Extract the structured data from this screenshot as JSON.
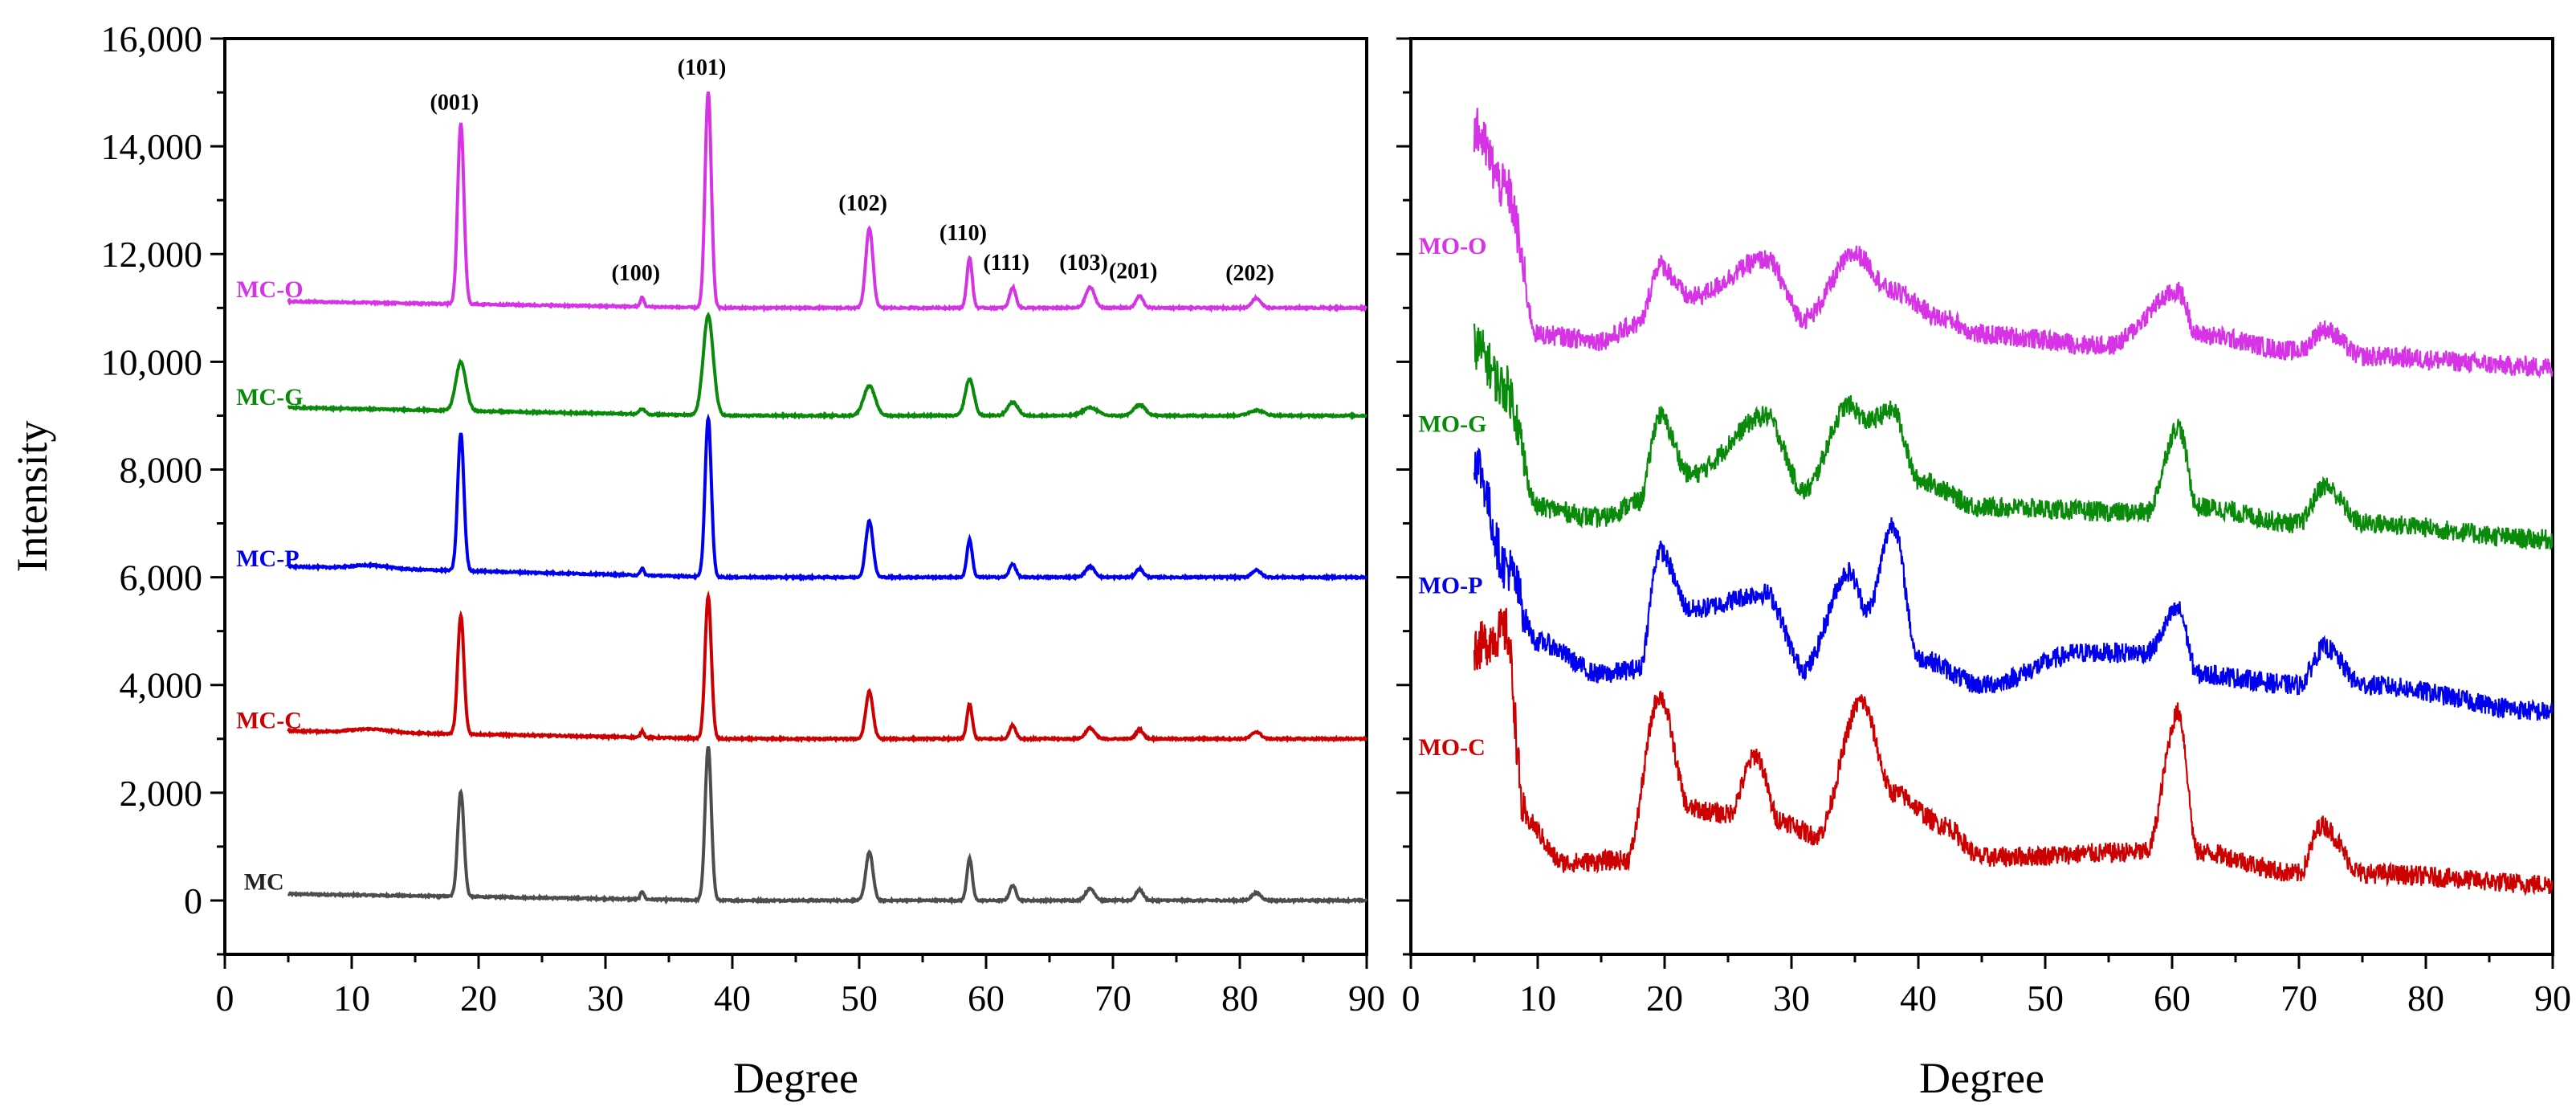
{
  "chart_data": [
    {
      "type": "line",
      "panel": "left",
      "title": "",
      "xlabel": "Degree",
      "ylabel": "Intensity",
      "xlim": [
        0,
        90
      ],
      "ylim": [
        -1000,
        16000
      ],
      "xticks": [
        0,
        10,
        20,
        30,
        40,
        50,
        60,
        70,
        80,
        90
      ],
      "xtick_labels": [
        "0",
        "10",
        "20",
        "30",
        "40",
        "50",
        "60",
        "70",
        "80",
        "90"
      ],
      "yticks": [
        0,
        2000,
        4000,
        6000,
        8000,
        10000,
        12000,
        14000,
        16000
      ],
      "ytick_labels": [
        "0",
        "2,000",
        "4,000",
        "6,000",
        "8,000",
        "10,000",
        "12,000",
        "14,000",
        "16,000"
      ],
      "peaks": [
        {
          "label": "(001)",
          "x": 18.6
        },
        {
          "label": "(100)",
          "x": 32.9
        },
        {
          "label": "(101)",
          "x": 38.1
        },
        {
          "label": "(102)",
          "x": 50.8
        },
        {
          "label": "(110)",
          "x": 58.7
        },
        {
          "label": "(111)",
          "x": 62.1
        },
        {
          "label": "(103)",
          "x": 68.2
        },
        {
          "label": "(201)",
          "x": 72.1
        },
        {
          "label": "(202)",
          "x": 81.3
        }
      ],
      "series": [
        {
          "name": "MC",
          "color": "#4d4d4d",
          "baseline": 0,
          "start": 120,
          "end": 0,
          "peaks": [
            [
              18.6,
              1950
            ],
            [
              32.9,
              150
            ],
            [
              38.1,
              2850
            ],
            [
              50.8,
              900
            ],
            [
              58.7,
              780
            ],
            [
              62.1,
              280
            ],
            [
              68.2,
              220
            ],
            [
              72.1,
              200
            ],
            [
              81.3,
              140
            ]
          ]
        },
        {
          "name": "MC-C",
          "color": "#cc0000",
          "baseline": 3000,
          "start": 3150,
          "end": 3000,
          "peaks": [
            [
              18.6,
              5200
            ],
            [
              32.9,
              3120
            ],
            [
              38.1,
              5650
            ],
            [
              50.8,
              3880
            ],
            [
              58.7,
              3640
            ],
            [
              62.1,
              3250
            ],
            [
              68.2,
              3200
            ],
            [
              72.1,
              3170
            ],
            [
              81.3,
              3130
            ]
          ]
        },
        {
          "name": "MC-P",
          "color": "#0000ee",
          "baseline": 6000,
          "start": 6200,
          "end": 6000,
          "peaks": [
            [
              18.6,
              8550
            ],
            [
              32.9,
              6130
            ],
            [
              38.1,
              8950
            ],
            [
              50.8,
              7050
            ],
            [
              58.7,
              6700
            ],
            [
              62.1,
              6250
            ],
            [
              68.2,
              6200
            ],
            [
              72.1,
              6160
            ],
            [
              81.3,
              6130
            ]
          ]
        },
        {
          "name": "MC-G",
          "color": "#0a8a0a",
          "baseline": 9000,
          "start": 9150,
          "end": 9000,
          "peaks": [
            [
              18.6,
              9900
            ],
            [
              32.9,
              9100
            ],
            [
              38.1,
              10850
            ],
            [
              50.8,
              9550
            ],
            [
              58.7,
              9680
            ],
            [
              62.1,
              9250
            ],
            [
              68.2,
              9150
            ],
            [
              72.1,
              9200
            ],
            [
              81.3,
              9100
            ]
          ]
        },
        {
          "name": "MC-O",
          "color": "#d633e6",
          "baseline": 11000,
          "start": 11120,
          "end": 11000,
          "peaks": [
            [
              18.6,
              14350
            ],
            [
              32.9,
              11180
            ],
            [
              38.1,
              15000
            ],
            [
              50.8,
              12480
            ],
            [
              58.7,
              11930
            ],
            [
              62.1,
              11380
            ],
            [
              68.2,
              11380
            ],
            [
              72.1,
              11220
            ],
            [
              81.3,
              11180
            ]
          ]
        }
      ]
    },
    {
      "type": "line",
      "panel": "right",
      "title": "",
      "xlabel": "Degree",
      "ylabel": "",
      "xlim": [
        0,
        90
      ],
      "xticks": [
        0,
        10,
        20,
        30,
        40,
        50,
        60,
        70,
        80,
        90
      ],
      "xtick_labels": [
        "0",
        "10",
        "20",
        "30",
        "40",
        "50",
        "60",
        "70",
        "80",
        "90"
      ],
      "y_axis_labels_shown": false,
      "series": [
        {
          "name": "MO-C",
          "color": "#cc0000",
          "baseline": 1000,
          "key_points": [
            [
              5,
              4700
            ],
            [
              7.5,
              5000
            ],
            [
              9,
              1500
            ],
            [
              12,
              700
            ],
            [
              17,
              750
            ],
            [
              19.6,
              3800
            ],
            [
              22,
              1700
            ],
            [
              25,
              1600
            ],
            [
              27.2,
              2700
            ],
            [
              29,
              1500
            ],
            [
              32,
              1200
            ],
            [
              35.5,
              3700
            ],
            [
              38,
              2000
            ],
            [
              42,
              1400
            ],
            [
              45,
              800
            ],
            [
              58,
              900
            ],
            [
              60.5,
              3500
            ],
            [
              62,
              900
            ],
            [
              70,
              500
            ],
            [
              71.8,
              1400
            ],
            [
              75,
              500
            ],
            [
              90,
              300
            ]
          ]
        },
        {
          "name": "MO-P",
          "color": "#0000ee",
          "baseline": 4000,
          "key_points": [
            [
              5,
              8200
            ],
            [
              7.5,
              6200
            ],
            [
              10,
              4800
            ],
            [
              15,
              4200
            ],
            [
              18,
              4300
            ],
            [
              19.6,
              6500
            ],
            [
              22,
              5400
            ],
            [
              28,
              5700
            ],
            [
              31,
              4300
            ],
            [
              34.5,
              6100
            ],
            [
              36,
              5400
            ],
            [
              38,
              7000
            ],
            [
              40,
              4500
            ],
            [
              45,
              4000
            ],
            [
              53,
              4600
            ],
            [
              58,
              4600
            ],
            [
              60.5,
              5400
            ],
            [
              62,
              4200
            ],
            [
              70,
              4000
            ],
            [
              72,
              4700
            ],
            [
              75,
              4000
            ],
            [
              90,
              3500
            ]
          ]
        },
        {
          "name": "MO-G",
          "color": "#0a8a0a",
          "baseline": 7000,
          "key_points": [
            [
              5,
              10300
            ],
            [
              7.5,
              9500
            ],
            [
              10,
              7300
            ],
            [
              15,
              7100
            ],
            [
              18,
              7400
            ],
            [
              19.6,
              9000
            ],
            [
              22,
              7900
            ],
            [
              28,
              9000
            ],
            [
              31,
              7600
            ],
            [
              34.5,
              9200
            ],
            [
              36,
              8900
            ],
            [
              38,
              9100
            ],
            [
              40,
              7800
            ],
            [
              45,
              7300
            ],
            [
              58,
              7200
            ],
            [
              60.5,
              8800
            ],
            [
              62,
              7300
            ],
            [
              70,
              7000
            ],
            [
              72,
              7700
            ],
            [
              75,
              7000
            ],
            [
              90,
              6700
            ]
          ]
        },
        {
          "name": "MO-O",
          "color": "#d633e6",
          "baseline": 10300,
          "key_points": [
            [
              5,
              14300
            ],
            [
              7.5,
              13200
            ],
            [
              10,
              10500
            ],
            [
              15,
              10400
            ],
            [
              18,
              10700
            ],
            [
              19.6,
              11800
            ],
            [
              22,
              11200
            ],
            [
              28,
              11900
            ],
            [
              31,
              10800
            ],
            [
              35,
              12000
            ],
            [
              38,
              11300
            ],
            [
              42,
              10800
            ],
            [
              45,
              10500
            ],
            [
              55,
              10300
            ],
            [
              60.5,
              11300
            ],
            [
              62,
              10500
            ],
            [
              70,
              10200
            ],
            [
              72,
              10600
            ],
            [
              75,
              10100
            ],
            [
              90,
              9900
            ]
          ]
        }
      ]
    }
  ]
}
